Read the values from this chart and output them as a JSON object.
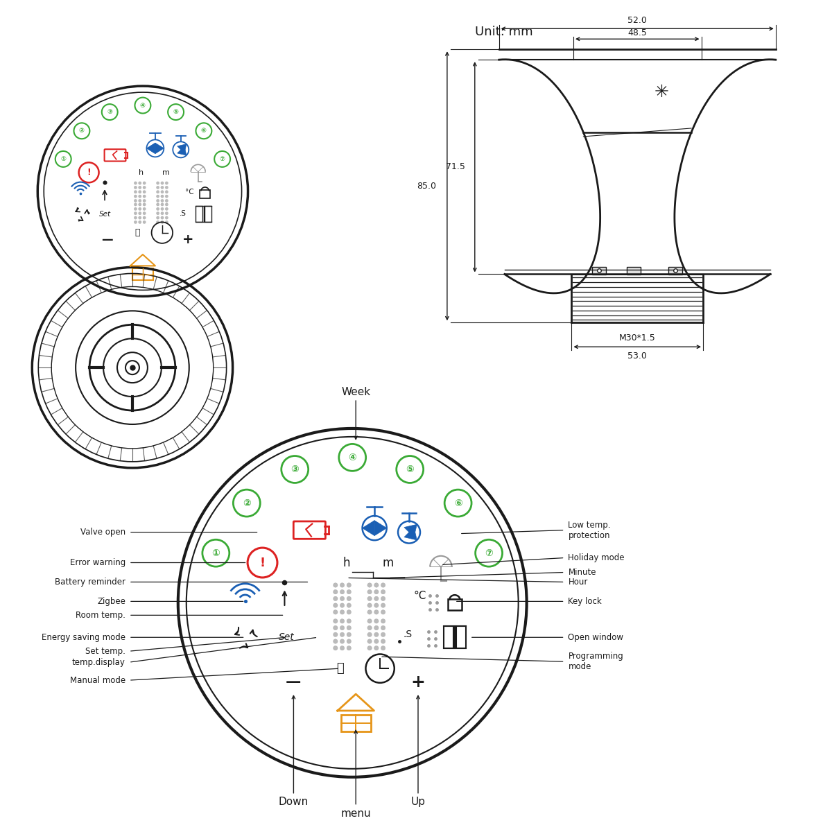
{
  "bg_color": "#ffffff",
  "unit_text": "Unit: mm",
  "dim_52": "52.0",
  "dim_485": "48.5",
  "dim_715": "71.5",
  "dim_85": "85.0",
  "dim_53": "53.0",
  "dim_m30": "M30*1.5",
  "week_label": "Week",
  "down_label": "Down",
  "menu_label": "menu",
  "up_label": "Up",
  "left_labels": [
    "Valve open",
    "Error warning",
    "Battery reminder",
    "Zigbee",
    "Room temp.",
    "Energy saving mode",
    "Set temp.",
    "temp.display",
    "Manual mode"
  ],
  "right_labels_top": [
    "Low temp.\nprotection",
    "Holiday mode",
    "Minute",
    "Hour",
    "Key lock"
  ],
  "right_labels_bot": [
    "Open window",
    "Programming\nmode"
  ],
  "green_color": "#3aaa35",
  "red_color": "#dd2222",
  "blue_color": "#1a5fb4",
  "orange_color": "#e69518",
  "gray_color": "#999999",
  "black_color": "#1a1a1a",
  "nums": [
    "①",
    "②",
    "③",
    "④",
    "⑤",
    "⑥",
    "⑦"
  ]
}
